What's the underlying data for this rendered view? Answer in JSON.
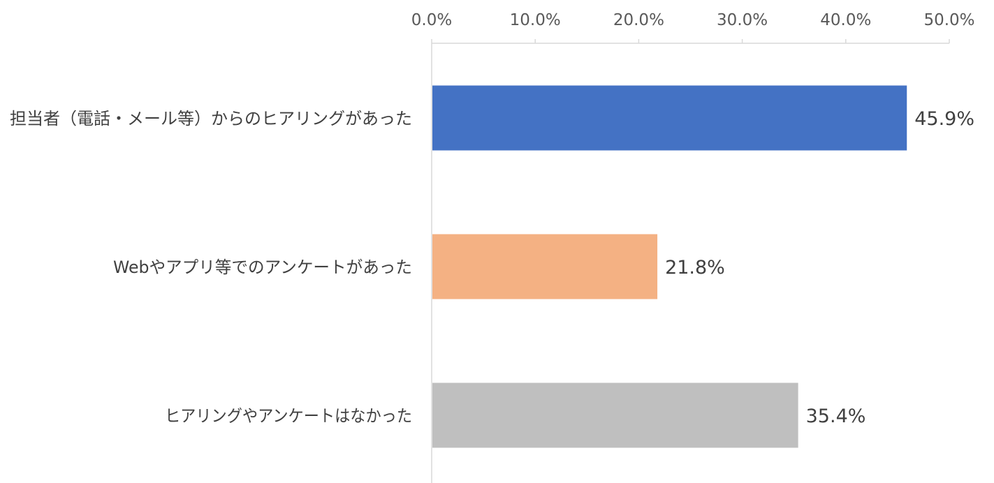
{
  "chart_data": {
    "type": "bar",
    "orientation": "horizontal",
    "title": "",
    "xlabel": "",
    "ylabel": "",
    "xlim": [
      0,
      50
    ],
    "ticks": [
      0,
      10,
      20,
      30,
      40,
      50
    ],
    "tick_labels": [
      "0.0%",
      "10.0%",
      "20.0%",
      "30.0%",
      "40.0%",
      "50.0%"
    ],
    "axis_position": "top",
    "grid": false,
    "legend": "none",
    "categories": [
      "担当者（電話・メール等）からのヒアリングがあった",
      "Webやアプリ等でのアンケートがあった",
      "ヒアリングやアンケートはなかった"
    ],
    "values": [
      45.9,
      21.8,
      35.4
    ],
    "data_labels": [
      "45.9%",
      "21.8%",
      "35.4%"
    ],
    "colors": [
      "#4472C4",
      "#F4B183",
      "#BFBFBF"
    ],
    "axis_color": "#D9D9D9"
  }
}
